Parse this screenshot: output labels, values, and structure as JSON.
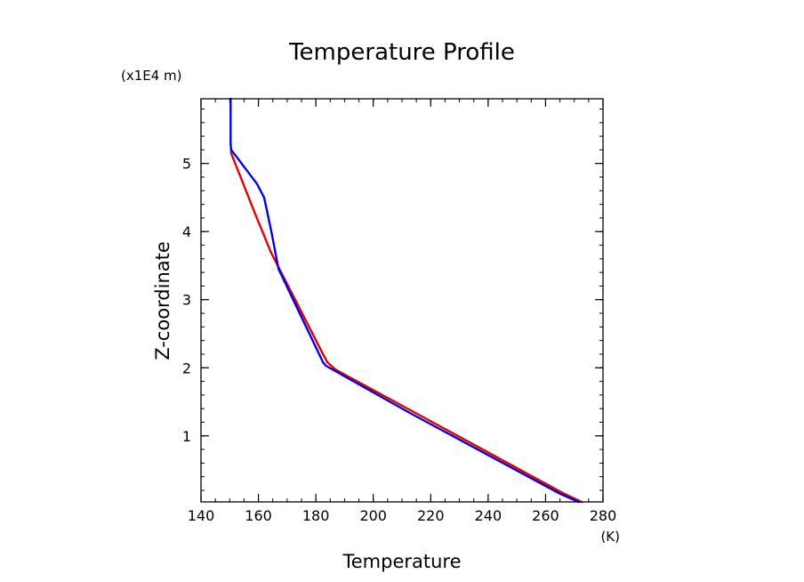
{
  "chart_data": {
    "type": "line",
    "title": "Temperature Profile",
    "xlabel": "Temperature",
    "ylabel": "Z-coordinate",
    "x_unit": "(K)",
    "y_unit": "(x1E4 m)",
    "xlim": [
      140,
      280
    ],
    "ylim": [
      0.03,
      5.95
    ],
    "x_ticks": [
      "140",
      "160",
      "180",
      "200",
      "220",
      "240",
      "260",
      "280"
    ],
    "y_ticks": [
      "1",
      "2",
      "3",
      "4",
      "5"
    ],
    "grid": false,
    "series": [
      {
        "color": "#e00000",
        "points": [
          [
            272.5,
            0.03
          ],
          [
            266.5,
            0.15
          ],
          [
            215,
            1.33
          ],
          [
            187,
            1.97
          ],
          [
            184,
            2.08
          ],
          [
            182.5,
            2.2
          ],
          [
            164.3,
            3.7
          ],
          [
            158.5,
            4.3
          ],
          [
            150.5,
            5.15
          ],
          [
            150.5,
            5.2
          ]
        ]
      },
      {
        "color": "#0000e0",
        "points": [
          [
            271.5,
            0.03
          ],
          [
            265,
            0.15
          ],
          [
            213,
            1.33
          ],
          [
            183.5,
            2.03
          ],
          [
            182.5,
            2.08
          ],
          [
            167,
            3.45
          ],
          [
            164.5,
            4.0
          ],
          [
            162,
            4.5
          ],
          [
            159.5,
            4.7
          ],
          [
            152,
            5.12
          ],
          [
            150.5,
            5.2
          ],
          [
            150.3,
            5.3
          ],
          [
            150.3,
            5.95
          ]
        ]
      }
    ]
  }
}
